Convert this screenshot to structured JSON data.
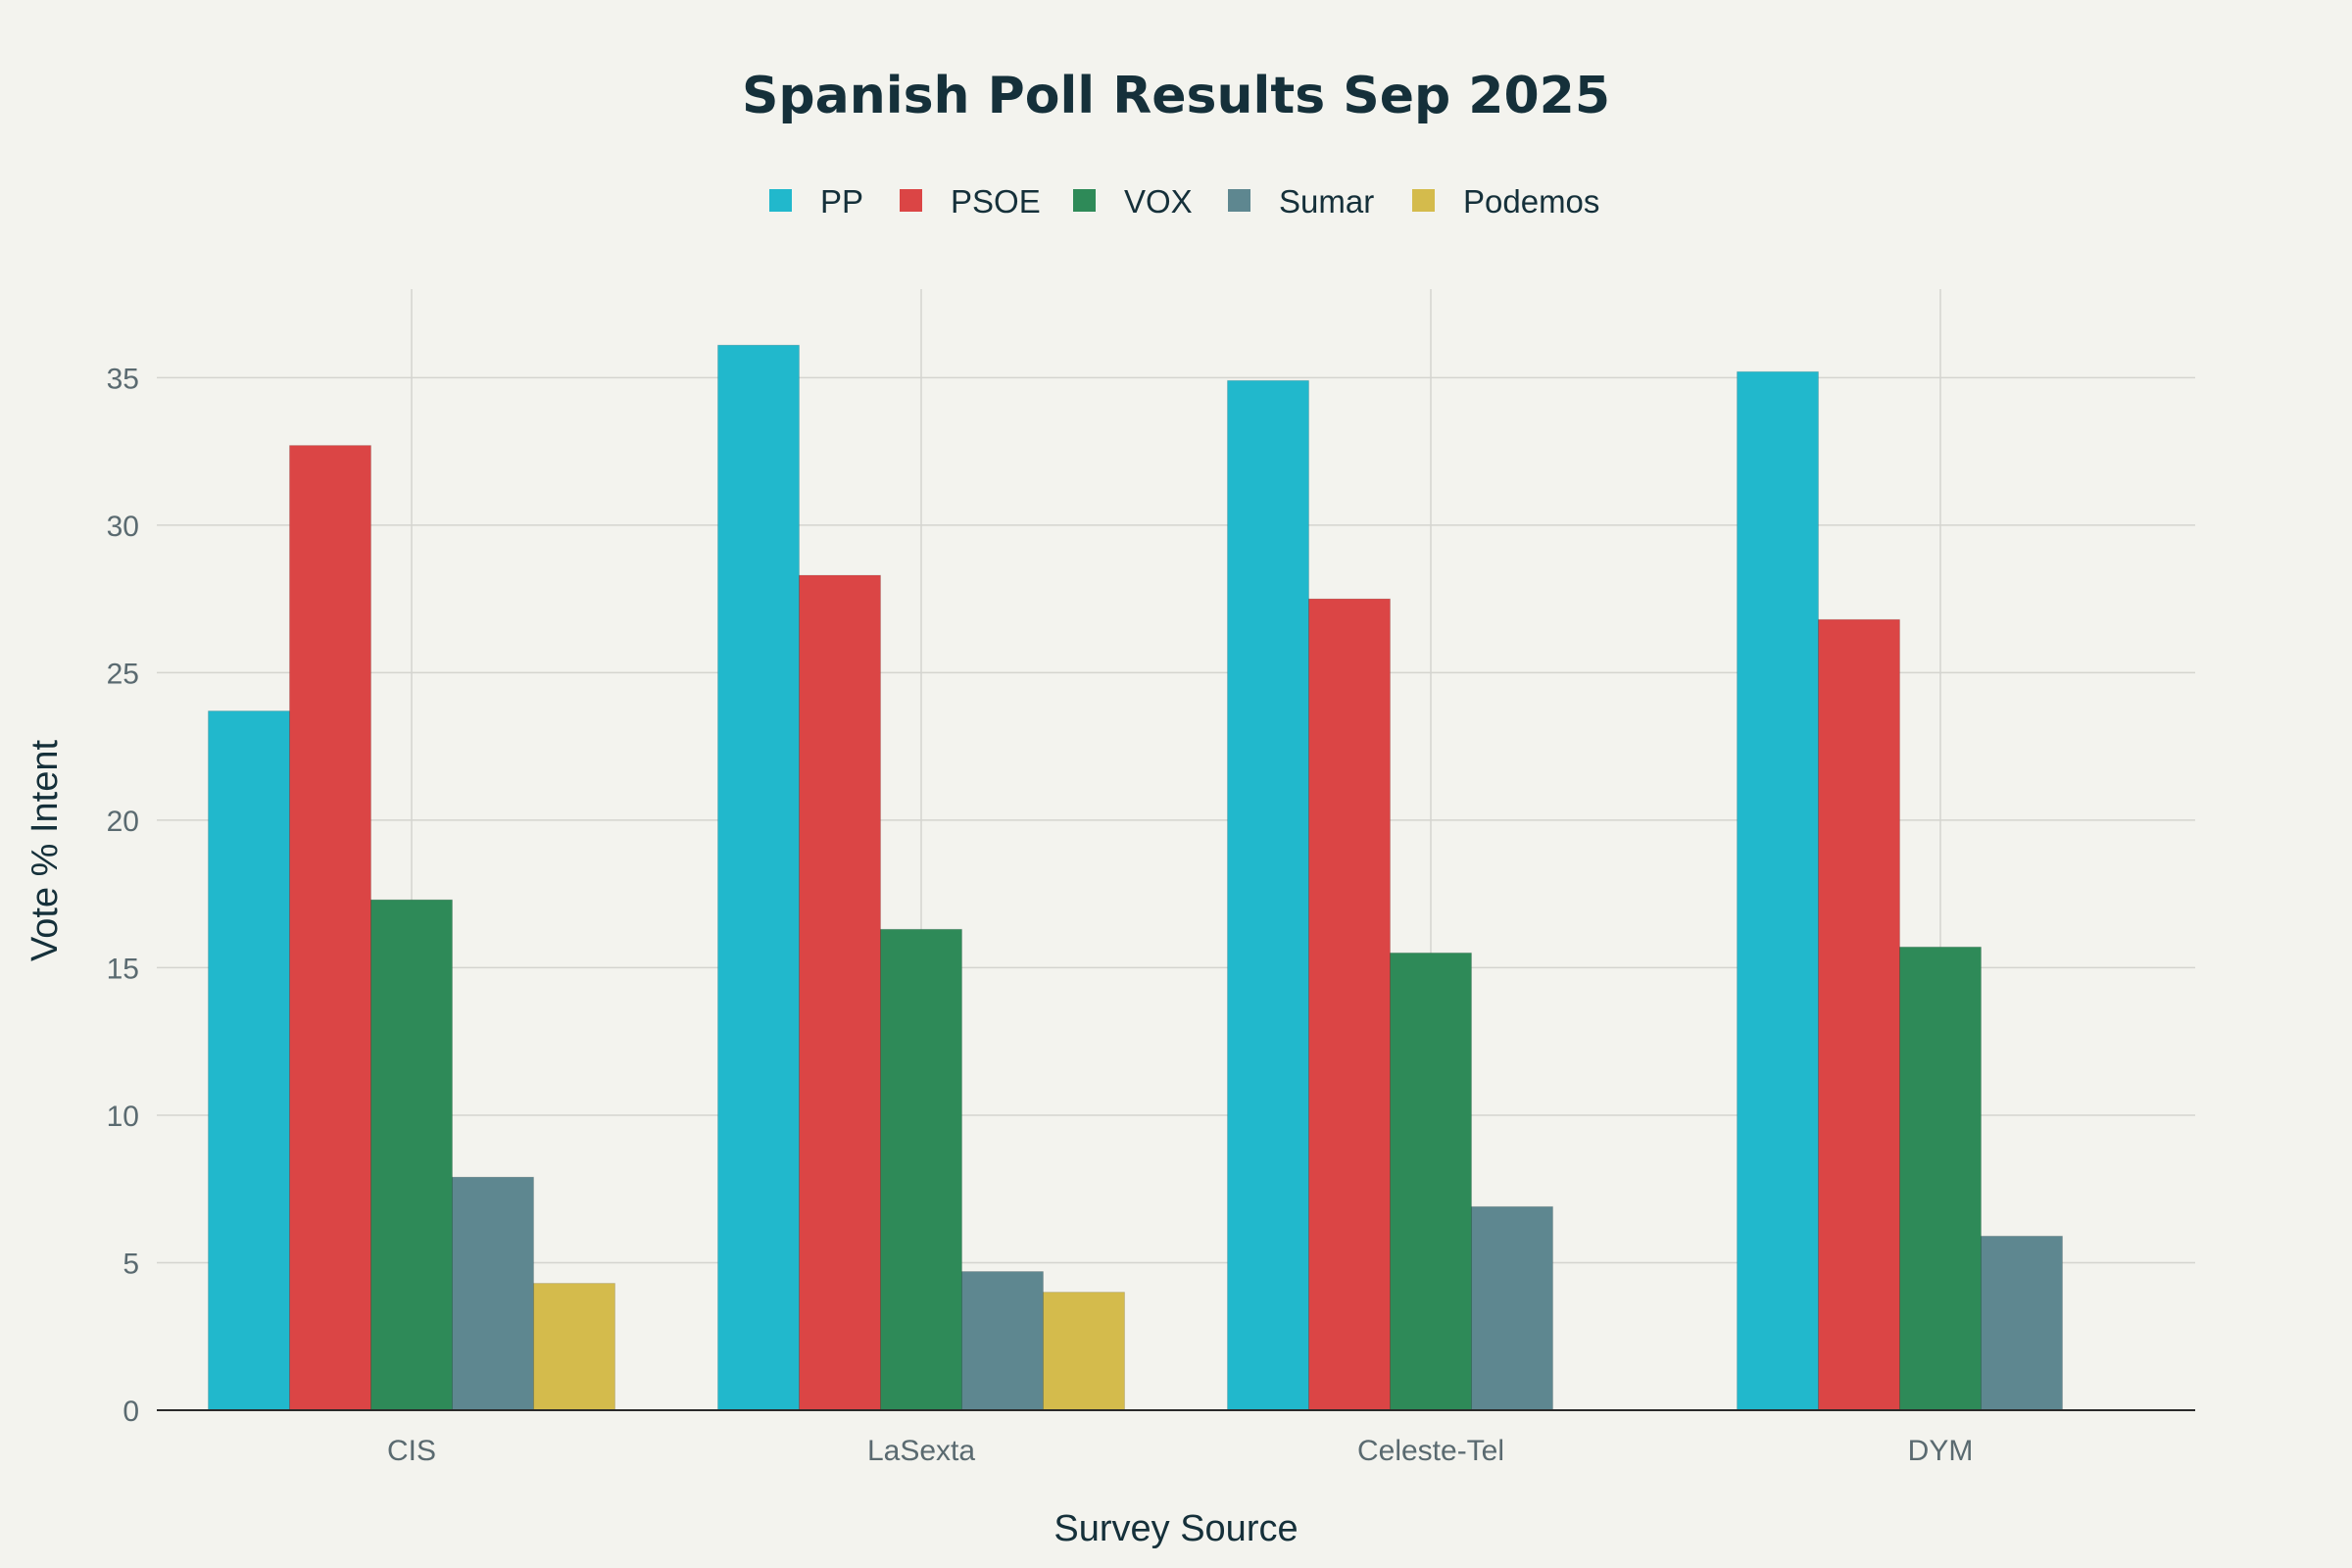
{
  "chart_data": {
    "type": "bar",
    "title": "Spanish Poll Results Sep 2025",
    "xlabel": "Survey Source",
    "ylabel": "Vote % Intent",
    "categories": [
      "CIS",
      "LaSexta",
      "Celeste-Tel",
      "DYM"
    ],
    "ylim": [
      0,
      38
    ],
    "yticks": [
      0,
      5,
      10,
      15,
      20,
      25,
      30,
      35
    ],
    "legend_position": "top-center",
    "grid": true,
    "series": [
      {
        "name": "PP",
        "color": "#21b8cc",
        "values": [
          23.7,
          36.1,
          34.9,
          35.2
        ]
      },
      {
        "name": "PSOE",
        "color": "#db4545",
        "values": [
          32.7,
          28.3,
          27.5,
          26.8
        ]
      },
      {
        "name": "VOX",
        "color": "#2e8a58",
        "values": [
          17.3,
          16.3,
          15.5,
          15.7
        ]
      },
      {
        "name": "Sumar",
        "color": "#5e8790",
        "values": [
          7.9,
          4.7,
          6.9,
          5.9
        ]
      },
      {
        "name": "Podemos",
        "color": "#d4bb4c",
        "values": [
          4.3,
          4.0,
          null,
          null
        ]
      }
    ]
  }
}
